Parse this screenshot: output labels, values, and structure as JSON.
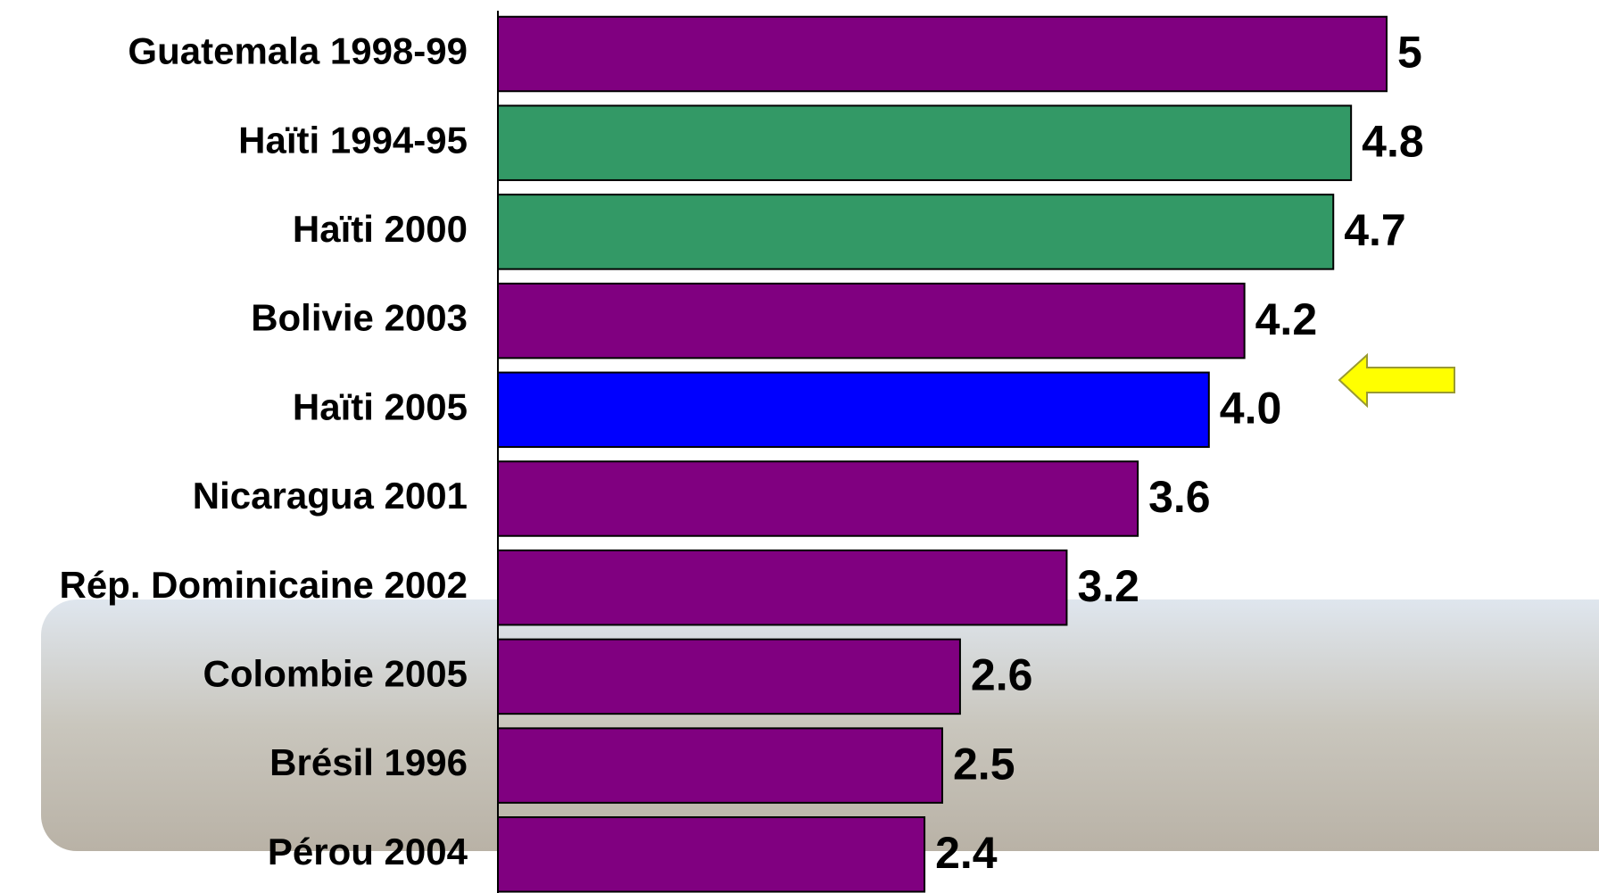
{
  "chart_data": {
    "type": "hbar",
    "categories": [
      "Guatemala 1998-99",
      "Haïti 1994-95",
      "Haïti 2000",
      "Bolivie 2003",
      "Haïti 2005",
      "Nicaragua 2001",
      "Rép. Dominicaine 2002",
      "Colombie 2005",
      "Brésil 1996",
      "Pérou 2004"
    ],
    "values": [
      5,
      4.8,
      4.7,
      4.2,
      4.0,
      3.6,
      3.2,
      2.6,
      2.5,
      2.4
    ],
    "value_labels": [
      "5",
      "4.8",
      "4.7",
      "4.2",
      "4.0",
      "3.6",
      "3.2",
      "2.6",
      "2.5",
      "2.4"
    ],
    "colors": [
      "#800080",
      "#339966",
      "#339966",
      "#800080",
      "#0000ff",
      "#800080",
      "#800080",
      "#800080",
      "#800080",
      "#800080"
    ],
    "xlim": [
      0,
      5
    ]
  }
}
